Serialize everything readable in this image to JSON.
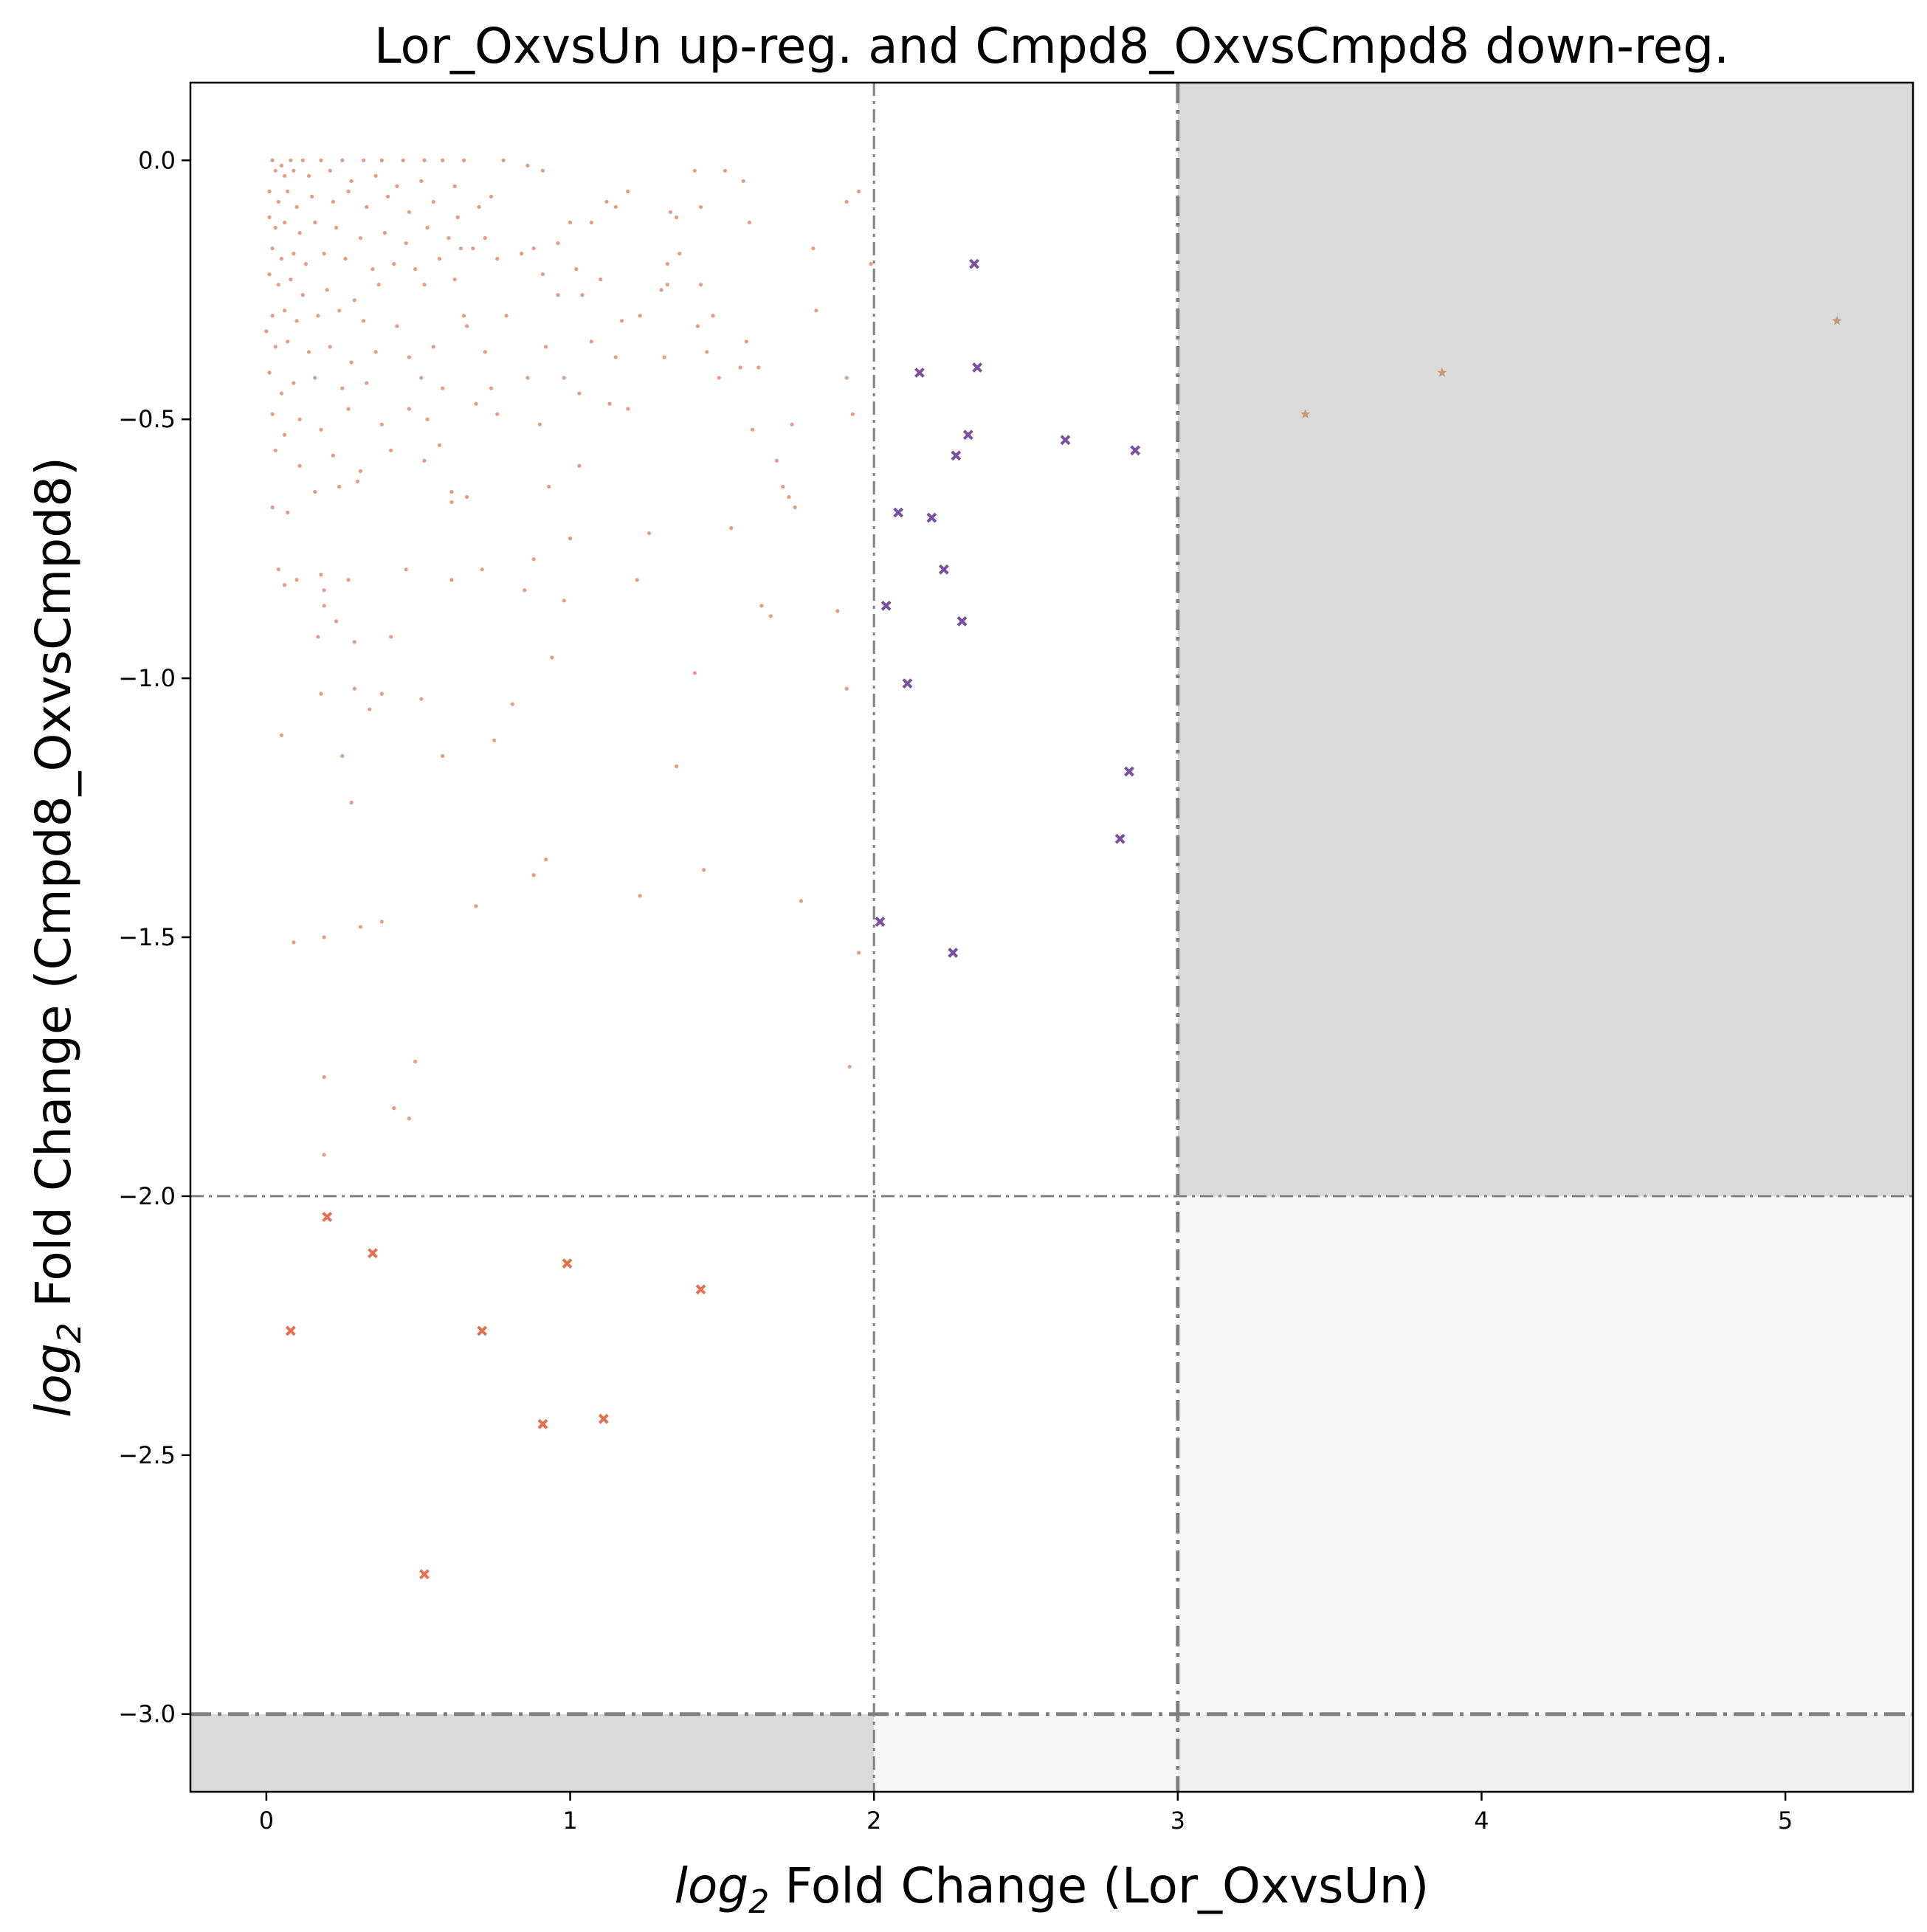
{
  "chart_data": {
    "type": "scatter",
    "title": "Lor_OxvsUn up-reg. and Cmpd8_OxvsCmpd8 down-reg.",
    "xlabel": {
      "italic": "log",
      "sub": "2",
      "rest": " Fold Change (Lor_OxvsUn)"
    },
    "ylabel": {
      "italic": "log",
      "sub": "2",
      "rest": " Fold Change (Cmpd8_OxvsCmpd8)"
    },
    "xlim": [
      -0.25,
      5.42
    ],
    "ylim": [
      -3.15,
      0.15
    ],
    "x_ticks": [
      {
        "value": 0,
        "label": "0"
      },
      {
        "value": 1,
        "label": "1"
      },
      {
        "value": 2,
        "label": "2"
      },
      {
        "value": 3,
        "label": "3"
      },
      {
        "value": 4,
        "label": "4"
      },
      {
        "value": 5,
        "label": "5"
      }
    ],
    "y_ticks": [
      {
        "value": 0.0,
        "label": "0.0"
      },
      {
        "value": -0.5,
        "label": "−0.5"
      },
      {
        "value": -1.0,
        "label": "−1.0"
      },
      {
        "value": -1.5,
        "label": "−1.5"
      },
      {
        "value": -2.0,
        "label": "−2.0"
      },
      {
        "value": -2.5,
        "label": "−2.5"
      },
      {
        "value": -3.0,
        "label": "−3.0"
      }
    ],
    "grid": false,
    "shaded_regions": [
      {
        "x": [
          3,
          5.42
        ],
        "y": [
          -2,
          0.15
        ],
        "color": "#dadada"
      },
      {
        "x": [
          3,
          5.42
        ],
        "y": [
          -3,
          -2
        ],
        "color": "#f7f7f7"
      },
      {
        "x": [
          -0.25,
          2
        ],
        "y": [
          -3.15,
          -3
        ],
        "color": "#dadada"
      },
      {
        "x": [
          2,
          3
        ],
        "y": [
          -3.15,
          -3
        ],
        "color": "#f7f7f7"
      },
      {
        "x": [
          3,
          5.42
        ],
        "y": [
          -3.15,
          -3
        ],
        "color": "#efefef"
      }
    ],
    "threshold_lines": [
      {
        "axis": "x",
        "value": 2,
        "style": "thin"
      },
      {
        "axis": "x",
        "value": 3,
        "style": "thick"
      },
      {
        "axis": "y",
        "value": -2,
        "style": "thin"
      },
      {
        "axis": "y",
        "value": -3,
        "style": "thick"
      }
    ],
    "series": [
      {
        "marker": "dot",
        "color": "#e07a55",
        "points": [
          [
            0.02,
            0.0
          ],
          [
            0.05,
            -0.01
          ],
          [
            0.08,
            0.0
          ],
          [
            0.12,
            0.0
          ],
          [
            0.18,
            0.0
          ],
          [
            0.25,
            0.0
          ],
          [
            0.32,
            0.0
          ],
          [
            0.38,
            0.0
          ],
          [
            0.45,
            0.0
          ],
          [
            0.52,
            0.0
          ],
          [
            0.58,
            0.0
          ],
          [
            0.65,
            0.0
          ],
          [
            0.78,
            0.0
          ],
          [
            0.86,
            -0.01
          ],
          [
            0.91,
            -0.02
          ],
          [
            0.03,
            -0.02
          ],
          [
            0.06,
            -0.03
          ],
          [
            0.09,
            -0.02
          ],
          [
            0.14,
            -0.03
          ],
          [
            0.21,
            -0.02
          ],
          [
            0.28,
            -0.04
          ],
          [
            0.36,
            -0.03
          ],
          [
            0.43,
            -0.05
          ],
          [
            0.51,
            -0.04
          ],
          [
            0.62,
            -0.05
          ],
          [
            1.41,
            -0.02
          ],
          [
            1.51,
            -0.02
          ],
          [
            1.57,
            -0.04
          ],
          [
            0.01,
            -0.06
          ],
          [
            0.04,
            -0.08
          ],
          [
            0.07,
            -0.06
          ],
          [
            0.1,
            -0.09
          ],
          [
            0.15,
            -0.07
          ],
          [
            0.22,
            -0.08
          ],
          [
            0.27,
            -0.06
          ],
          [
            0.33,
            -0.09
          ],
          [
            0.4,
            -0.07
          ],
          [
            0.47,
            -0.1
          ],
          [
            0.55,
            -0.08
          ],
          [
            0.63,
            -0.11
          ],
          [
            0.7,
            -0.09
          ],
          [
            0.74,
            -0.07
          ],
          [
            1.19,
            -0.06
          ],
          [
            1.12,
            -0.08
          ],
          [
            1.15,
            -0.09
          ],
          [
            1.95,
            -0.06
          ],
          [
            1.91,
            -0.08
          ],
          [
            0.01,
            -0.11
          ],
          [
            0.03,
            -0.13
          ],
          [
            0.06,
            -0.12
          ],
          [
            0.11,
            -0.14
          ],
          [
            0.16,
            -0.12
          ],
          [
            0.23,
            -0.13
          ],
          [
            0.31,
            -0.15
          ],
          [
            0.39,
            -0.14
          ],
          [
            0.46,
            -0.16
          ],
          [
            0.53,
            -0.13
          ],
          [
            0.6,
            -0.15
          ],
          [
            0.68,
            -0.17
          ],
          [
            0.72,
            -0.15
          ],
          [
            1.0,
            -0.12
          ],
          [
            1.07,
            -0.12
          ],
          [
            1.33,
            -0.1
          ],
          [
            1.43,
            -0.09
          ],
          [
            1.35,
            -0.11
          ],
          [
            1.59,
            -0.12
          ],
          [
            0.02,
            -0.17
          ],
          [
            0.05,
            -0.19
          ],
          [
            0.09,
            -0.18
          ],
          [
            0.13,
            -0.2
          ],
          [
            0.19,
            -0.18
          ],
          [
            0.26,
            -0.19
          ],
          [
            0.35,
            -0.21
          ],
          [
            0.42,
            -0.2
          ],
          [
            0.49,
            -0.21
          ],
          [
            0.57,
            -0.19
          ],
          [
            0.64,
            -0.17
          ],
          [
            0.76,
            -0.19
          ],
          [
            0.84,
            -0.18
          ],
          [
            0.88,
            -0.17
          ],
          [
            0.96,
            -0.16
          ],
          [
            1.02,
            -0.21
          ],
          [
            1.1,
            -0.23
          ],
          [
            1.36,
            -0.18
          ],
          [
            1.32,
            -0.2
          ],
          [
            1.8,
            -0.17
          ],
          [
            1.99,
            -0.2
          ],
          [
            0.01,
            -0.22
          ],
          [
            0.04,
            -0.24
          ],
          [
            0.08,
            -0.23
          ],
          [
            0.12,
            -0.26
          ],
          [
            0.2,
            -0.25
          ],
          [
            0.29,
            -0.27
          ],
          [
            0.37,
            -0.24
          ],
          [
            0.52,
            -0.24
          ],
          [
            0.62,
            -0.23
          ],
          [
            0.91,
            -0.22
          ],
          [
            0.96,
            -0.26
          ],
          [
            1.04,
            -0.26
          ],
          [
            1.3,
            -0.25
          ],
          [
            1.32,
            -0.24
          ],
          [
            1.43,
            -0.24
          ],
          [
            0.02,
            -0.3
          ],
          [
            0.06,
            -0.29
          ],
          [
            0.1,
            -0.31
          ],
          [
            0.17,
            -0.3
          ],
          [
            0.24,
            -0.29
          ],
          [
            0.32,
            -0.31
          ],
          [
            0.43,
            -0.32
          ],
          [
            0.65,
            -0.3
          ],
          [
            0.66,
            -0.32
          ],
          [
            0.79,
            -0.3
          ],
          [
            1.17,
            -0.31
          ],
          [
            1.23,
            -0.3
          ],
          [
            1.42,
            -0.32
          ],
          [
            1.47,
            -0.3
          ],
          [
            1.81,
            -0.29
          ],
          [
            0.0,
            -0.33
          ],
          [
            0.03,
            -0.36
          ],
          [
            0.07,
            -0.35
          ],
          [
            0.14,
            -0.37
          ],
          [
            0.21,
            -0.36
          ],
          [
            0.28,
            -0.39
          ],
          [
            0.36,
            -0.37
          ],
          [
            0.47,
            -0.38
          ],
          [
            0.55,
            -0.36
          ],
          [
            0.72,
            -0.37
          ],
          [
            0.92,
            -0.36
          ],
          [
            1.07,
            -0.35
          ],
          [
            1.15,
            -0.38
          ],
          [
            1.31,
            -0.38
          ],
          [
            1.45,
            -0.37
          ],
          [
            1.58,
            -0.35
          ],
          [
            0.01,
            -0.41
          ],
          [
            0.05,
            -0.45
          ],
          [
            0.09,
            -0.43
          ],
          [
            0.16,
            -0.42
          ],
          [
            0.25,
            -0.44
          ],
          [
            0.33,
            -0.43
          ],
          [
            0.51,
            -0.42
          ],
          [
            0.58,
            -0.44
          ],
          [
            0.74,
            -0.44
          ],
          [
            0.86,
            -0.42
          ],
          [
            0.98,
            -0.42
          ],
          [
            1.03,
            -0.45
          ],
          [
            1.13,
            -0.47
          ],
          [
            1.49,
            -0.42
          ],
          [
            1.56,
            -0.4
          ],
          [
            1.62,
            -0.4
          ],
          [
            1.91,
            -0.42
          ],
          [
            0.02,
            -0.49
          ],
          [
            0.06,
            -0.53
          ],
          [
            0.11,
            -0.5
          ],
          [
            0.18,
            -0.52
          ],
          [
            0.27,
            -0.48
          ],
          [
            0.38,
            -0.51
          ],
          [
            0.47,
            -0.48
          ],
          [
            0.53,
            -0.5
          ],
          [
            0.69,
            -0.47
          ],
          [
            0.76,
            -0.49
          ],
          [
            0.9,
            -0.51
          ],
          [
            1.19,
            -0.48
          ],
          [
            1.6,
            -0.52
          ],
          [
            1.73,
            -0.51
          ],
          [
            1.93,
            -0.49
          ],
          [
            0.03,
            -0.56
          ],
          [
            0.11,
            -0.59
          ],
          [
            0.22,
            -0.57
          ],
          [
            0.31,
            -0.6
          ],
          [
            0.41,
            -0.56
          ],
          [
            0.52,
            -0.58
          ],
          [
            0.57,
            -0.55
          ],
          [
            1.03,
            -0.59
          ],
          [
            1.68,
            -0.58
          ],
          [
            1.7,
            -0.63
          ],
          [
            0.02,
            -0.67
          ],
          [
            0.07,
            -0.68
          ],
          [
            0.16,
            -0.64
          ],
          [
            0.24,
            -0.63
          ],
          [
            0.3,
            -0.62
          ],
          [
            0.61,
            -0.64
          ],
          [
            0.66,
            -0.65
          ],
          [
            0.61,
            -0.66
          ],
          [
            0.93,
            -0.63
          ],
          [
            1.72,
            -0.65
          ],
          [
            1.74,
            -0.67
          ],
          [
            0.04,
            -0.79
          ],
          [
            0.06,
            -0.82
          ],
          [
            0.1,
            -0.81
          ],
          [
            0.18,
            -0.8
          ],
          [
            0.19,
            -0.83
          ],
          [
            0.27,
            -0.81
          ],
          [
            0.46,
            -0.79
          ],
          [
            0.61,
            -0.81
          ],
          [
            0.71,
            -0.79
          ],
          [
            0.85,
            -0.83
          ],
          [
            1.0,
            -0.73
          ],
          [
            1.26,
            -0.72
          ],
          [
            1.22,
            -0.81
          ],
          [
            1.53,
            -0.71
          ],
          [
            0.17,
            -0.92
          ],
          [
            0.19,
            -0.86
          ],
          [
            0.23,
            -0.89
          ],
          [
            0.29,
            -0.93
          ],
          [
            0.41,
            -0.92
          ],
          [
            0.88,
            -0.77
          ],
          [
            0.94,
            -0.96
          ],
          [
            0.98,
            -0.85
          ],
          [
            1.63,
            -0.86
          ],
          [
            1.66,
            -0.88
          ],
          [
            1.88,
            -0.87
          ],
          [
            0.05,
            -1.11
          ],
          [
            0.18,
            -1.03
          ],
          [
            0.25,
            -1.15
          ],
          [
            0.29,
            -1.02
          ],
          [
            0.34,
            -1.06
          ],
          [
            0.38,
            -1.03
          ],
          [
            0.51,
            -1.04
          ],
          [
            0.58,
            -1.15
          ],
          [
            0.75,
            -1.12
          ],
          [
            0.81,
            -1.05
          ],
          [
            1.35,
            -1.17
          ],
          [
            1.41,
            -0.99
          ],
          [
            1.91,
            -1.02
          ],
          [
            0.28,
            -1.24
          ],
          [
            0.19,
            -1.77
          ],
          [
            0.19,
            -1.92
          ],
          [
            0.09,
            -1.51
          ],
          [
            0.19,
            -1.5
          ],
          [
            0.31,
            -1.48
          ],
          [
            0.38,
            -1.47
          ],
          [
            0.42,
            -1.83
          ],
          [
            0.47,
            -1.85
          ],
          [
            0.49,
            -1.74
          ],
          [
            0.88,
            -1.38
          ],
          [
            0.92,
            -1.35
          ],
          [
            0.69,
            -1.44
          ],
          [
            1.23,
            -1.42
          ],
          [
            1.44,
            -1.37
          ],
          [
            1.76,
            -1.43
          ],
          [
            1.95,
            -1.53
          ],
          [
            1.92,
            -1.75
          ]
        ]
      },
      {
        "marker": "x",
        "color": "#e66f50",
        "points": [
          [
            0.08,
            -2.26
          ],
          [
            0.2,
            -2.04
          ],
          [
            0.35,
            -2.11
          ],
          [
            0.52,
            -2.73
          ],
          [
            0.71,
            -2.26
          ],
          [
            0.91,
            -2.44
          ],
          [
            0.99,
            -2.13
          ],
          [
            1.11,
            -2.43
          ],
          [
            1.43,
            -2.18
          ]
        ]
      },
      {
        "marker": "x",
        "color": "#7b4fa0",
        "points": [
          [
            2.33,
            -0.2
          ],
          [
            2.15,
            -0.41
          ],
          [
            2.34,
            -0.4
          ],
          [
            2.31,
            -0.53
          ],
          [
            2.27,
            -0.57
          ],
          [
            2.63,
            -0.54
          ],
          [
            2.86,
            -0.56
          ],
          [
            2.08,
            -0.68
          ],
          [
            2.19,
            -0.69
          ],
          [
            2.23,
            -0.79
          ],
          [
            2.04,
            -0.86
          ],
          [
            2.29,
            -0.89
          ],
          [
            2.11,
            -1.01
          ],
          [
            2.84,
            -1.18
          ],
          [
            2.81,
            -1.31
          ],
          [
            2.02,
            -1.47
          ],
          [
            2.26,
            -1.53
          ]
        ]
      },
      {
        "marker": "star",
        "color": "#c49a7e",
        "points": [
          [
            3.42,
            -0.49
          ],
          [
            3.87,
            -0.41
          ],
          [
            5.17,
            -0.31
          ]
        ]
      }
    ]
  }
}
